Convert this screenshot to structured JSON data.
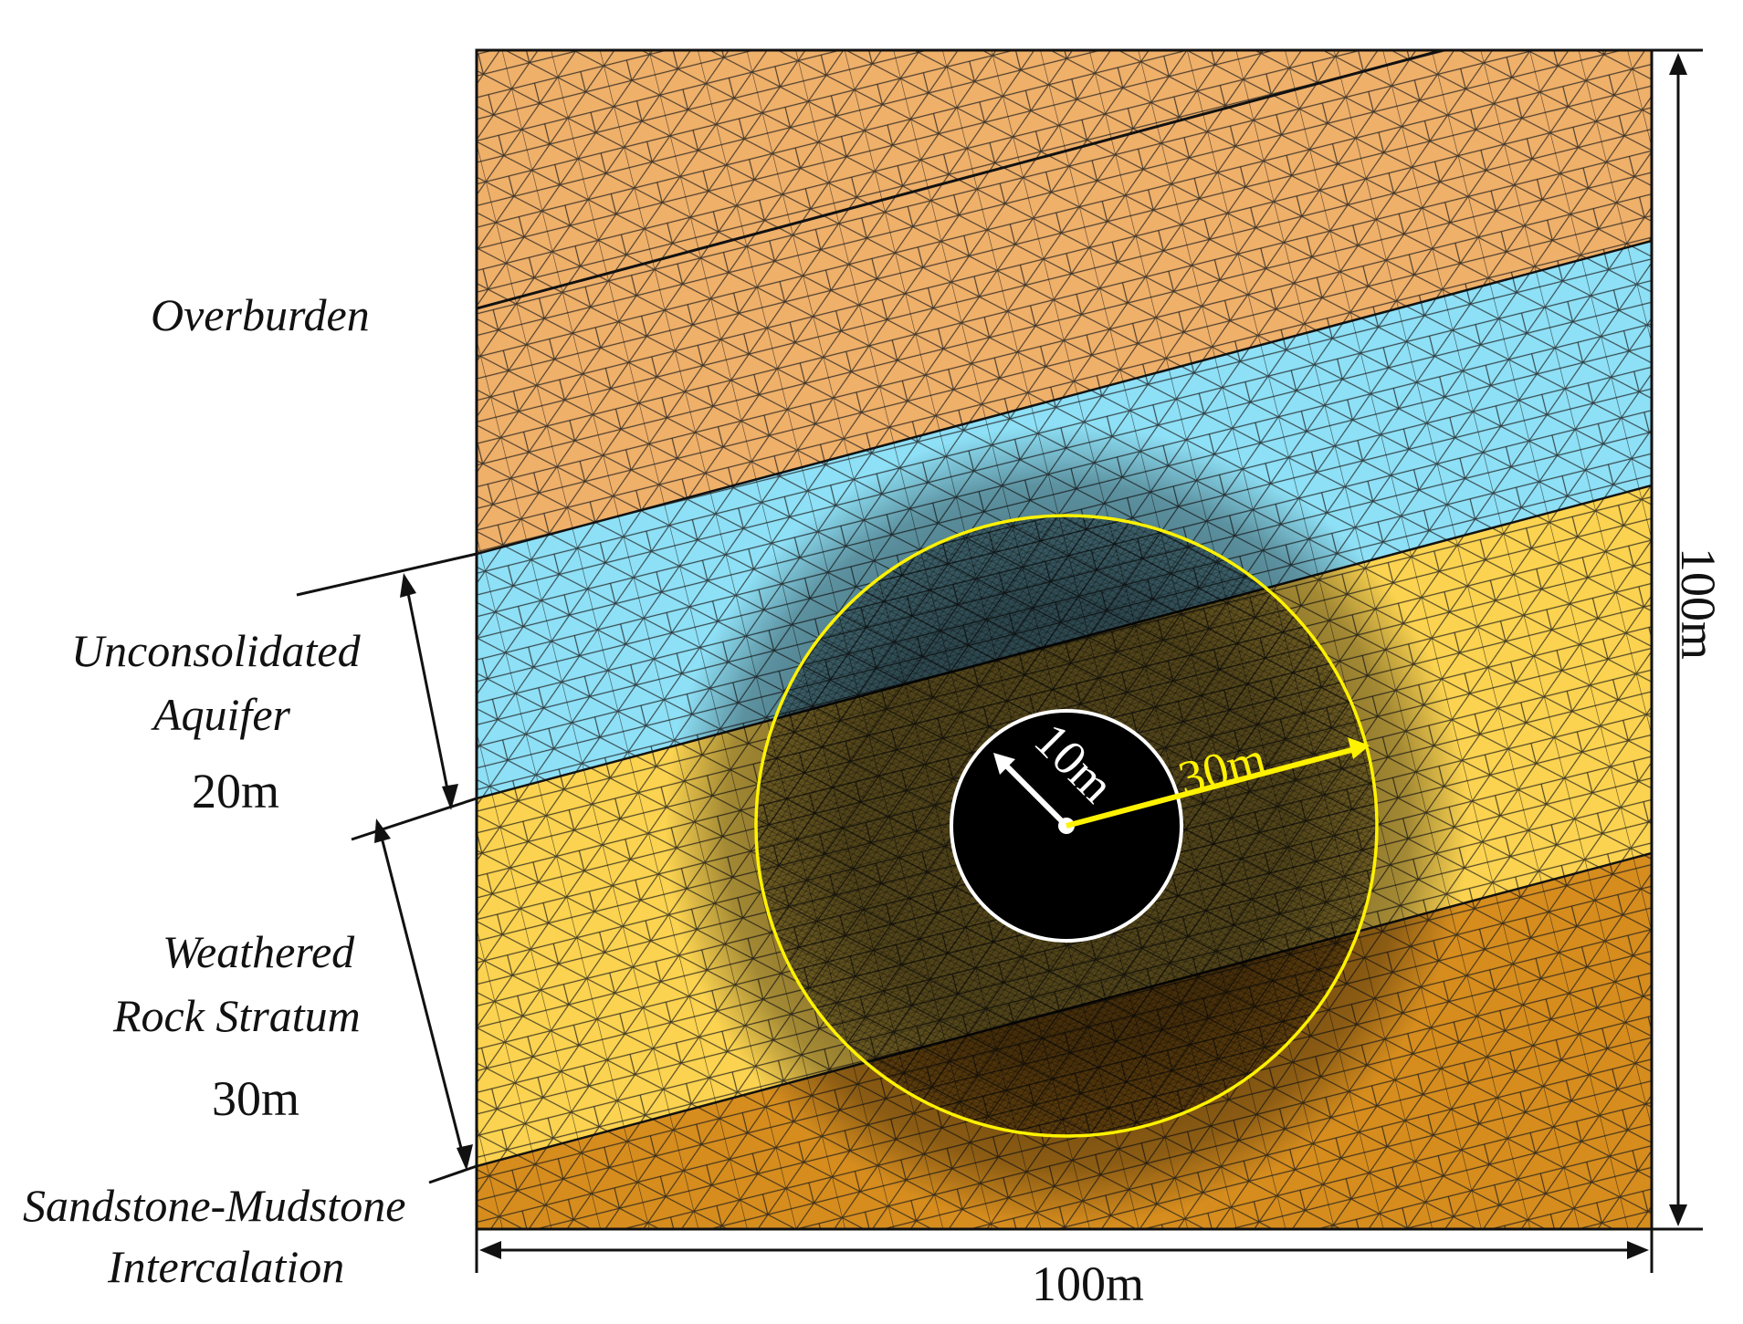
{
  "layers": {
    "overburden": {
      "name": "Overburden",
      "color": "#efb06a"
    },
    "aquifer": {
      "name_line1": "Unconsolidated",
      "name_line2": "Aquifer",
      "thickness": "20m",
      "color": "#8ee0f6"
    },
    "weathered": {
      "name_line1": "Weathered",
      "name_line2": "Rock Stratum",
      "thickness": "30m",
      "color": "#fbd350"
    },
    "sandstone": {
      "name_line1": "Sandstone-Mudstone",
      "name_line2": "Intercalation",
      "color": "#d68d1e"
    }
  },
  "dimensions": {
    "width": "100m",
    "height": "100m"
  },
  "excavation": {
    "inner_radius": "10m",
    "outer_radius": "30m",
    "inner_color": "#000000",
    "outer_ring_color": "#fff200"
  }
}
